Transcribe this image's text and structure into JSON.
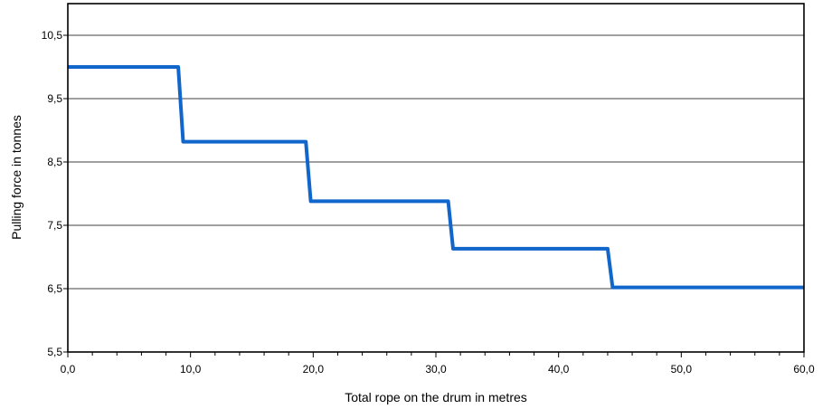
{
  "chart_data": {
    "type": "line",
    "title": "",
    "xlabel": "Total rope on the drum in metres",
    "ylabel": "Pulling force in tonnes",
    "xlim": [
      0,
      60
    ],
    "ylim": [
      5.5,
      11.0
    ],
    "x_ticks": [
      0,
      10,
      20,
      30,
      40,
      50,
      60
    ],
    "x_tick_labels": [
      "0,0",
      "10,0",
      "20,0",
      "30,0",
      "40,0",
      "50,0",
      "60,0"
    ],
    "y_ticks": [
      5.5,
      6.5,
      7.5,
      8.5,
      9.5,
      10.5
    ],
    "y_tick_labels": [
      "5,5",
      "6,5",
      "7,5",
      "8,5",
      "9,5",
      "10,5"
    ],
    "grid": "horizontal",
    "series": [
      {
        "color": "#1166cc",
        "x": [
          0.0,
          9.0,
          9.4,
          19.4,
          19.8,
          31.0,
          31.4,
          44.0,
          44.4,
          60.0
        ],
        "y": [
          10.0,
          10.0,
          8.82,
          8.82,
          7.88,
          7.88,
          7.13,
          7.13,
          6.52,
          6.52
        ]
      }
    ]
  }
}
